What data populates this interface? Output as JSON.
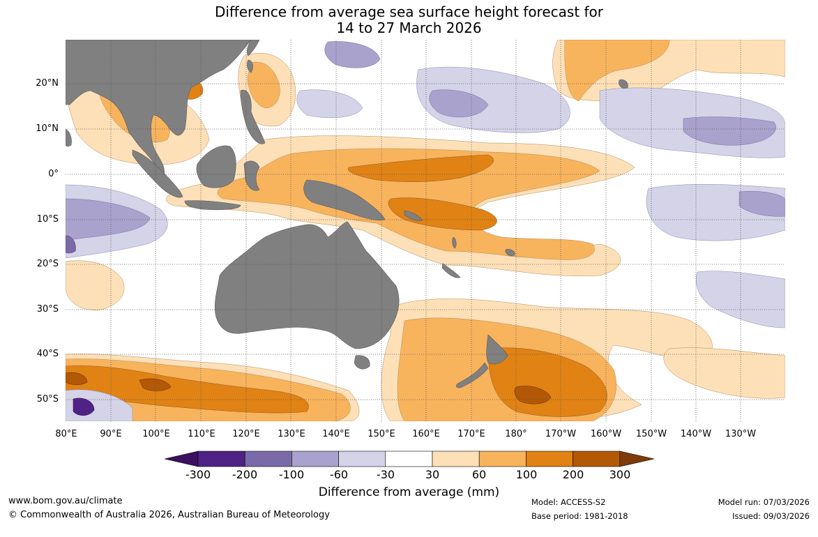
{
  "title": {
    "line1": "Difference from average sea surface height forecast for",
    "line2": "14 to 27 March 2026"
  },
  "map": {
    "lat_labels": [
      "20°N",
      "10°N",
      "0°",
      "10°S",
      "20°S",
      "30°S",
      "40°S",
      "50°S"
    ],
    "lon_labels": [
      "80°E",
      "90°E",
      "100°E",
      "110°E",
      "120°E",
      "130°E",
      "140°E",
      "150°E",
      "160°E",
      "170°E",
      "180°",
      "170°W",
      "160°W",
      "150°W",
      "140°W",
      "130°W"
    ],
    "land_color": "#808080"
  },
  "colorbar": {
    "title": "Difference from average (mm)",
    "tick_labels": [
      "-300",
      "-200",
      "-100",
      "-60",
      "-30",
      "30",
      "60",
      "100",
      "200",
      "300"
    ],
    "colors": [
      "#3b1060",
      "#4f2285",
      "#7a6ba8",
      "#a9a2cc",
      "#d4d3e8",
      "#ffffff",
      "#fde0b7",
      "#f8b35d",
      "#e08214",
      "#b35806",
      "#7f3b08"
    ]
  },
  "footer": {
    "url": "www.bom.gov.au/climate",
    "copyright": "© Commonwealth of Australia 2026, Australian Bureau of Meteorology",
    "model": "Model: ACCESS-S2",
    "base_period": "Base period: 1981-2018",
    "model_run": "Model run: 07/03/2026",
    "issued": "Issued: 09/03/2026"
  }
}
